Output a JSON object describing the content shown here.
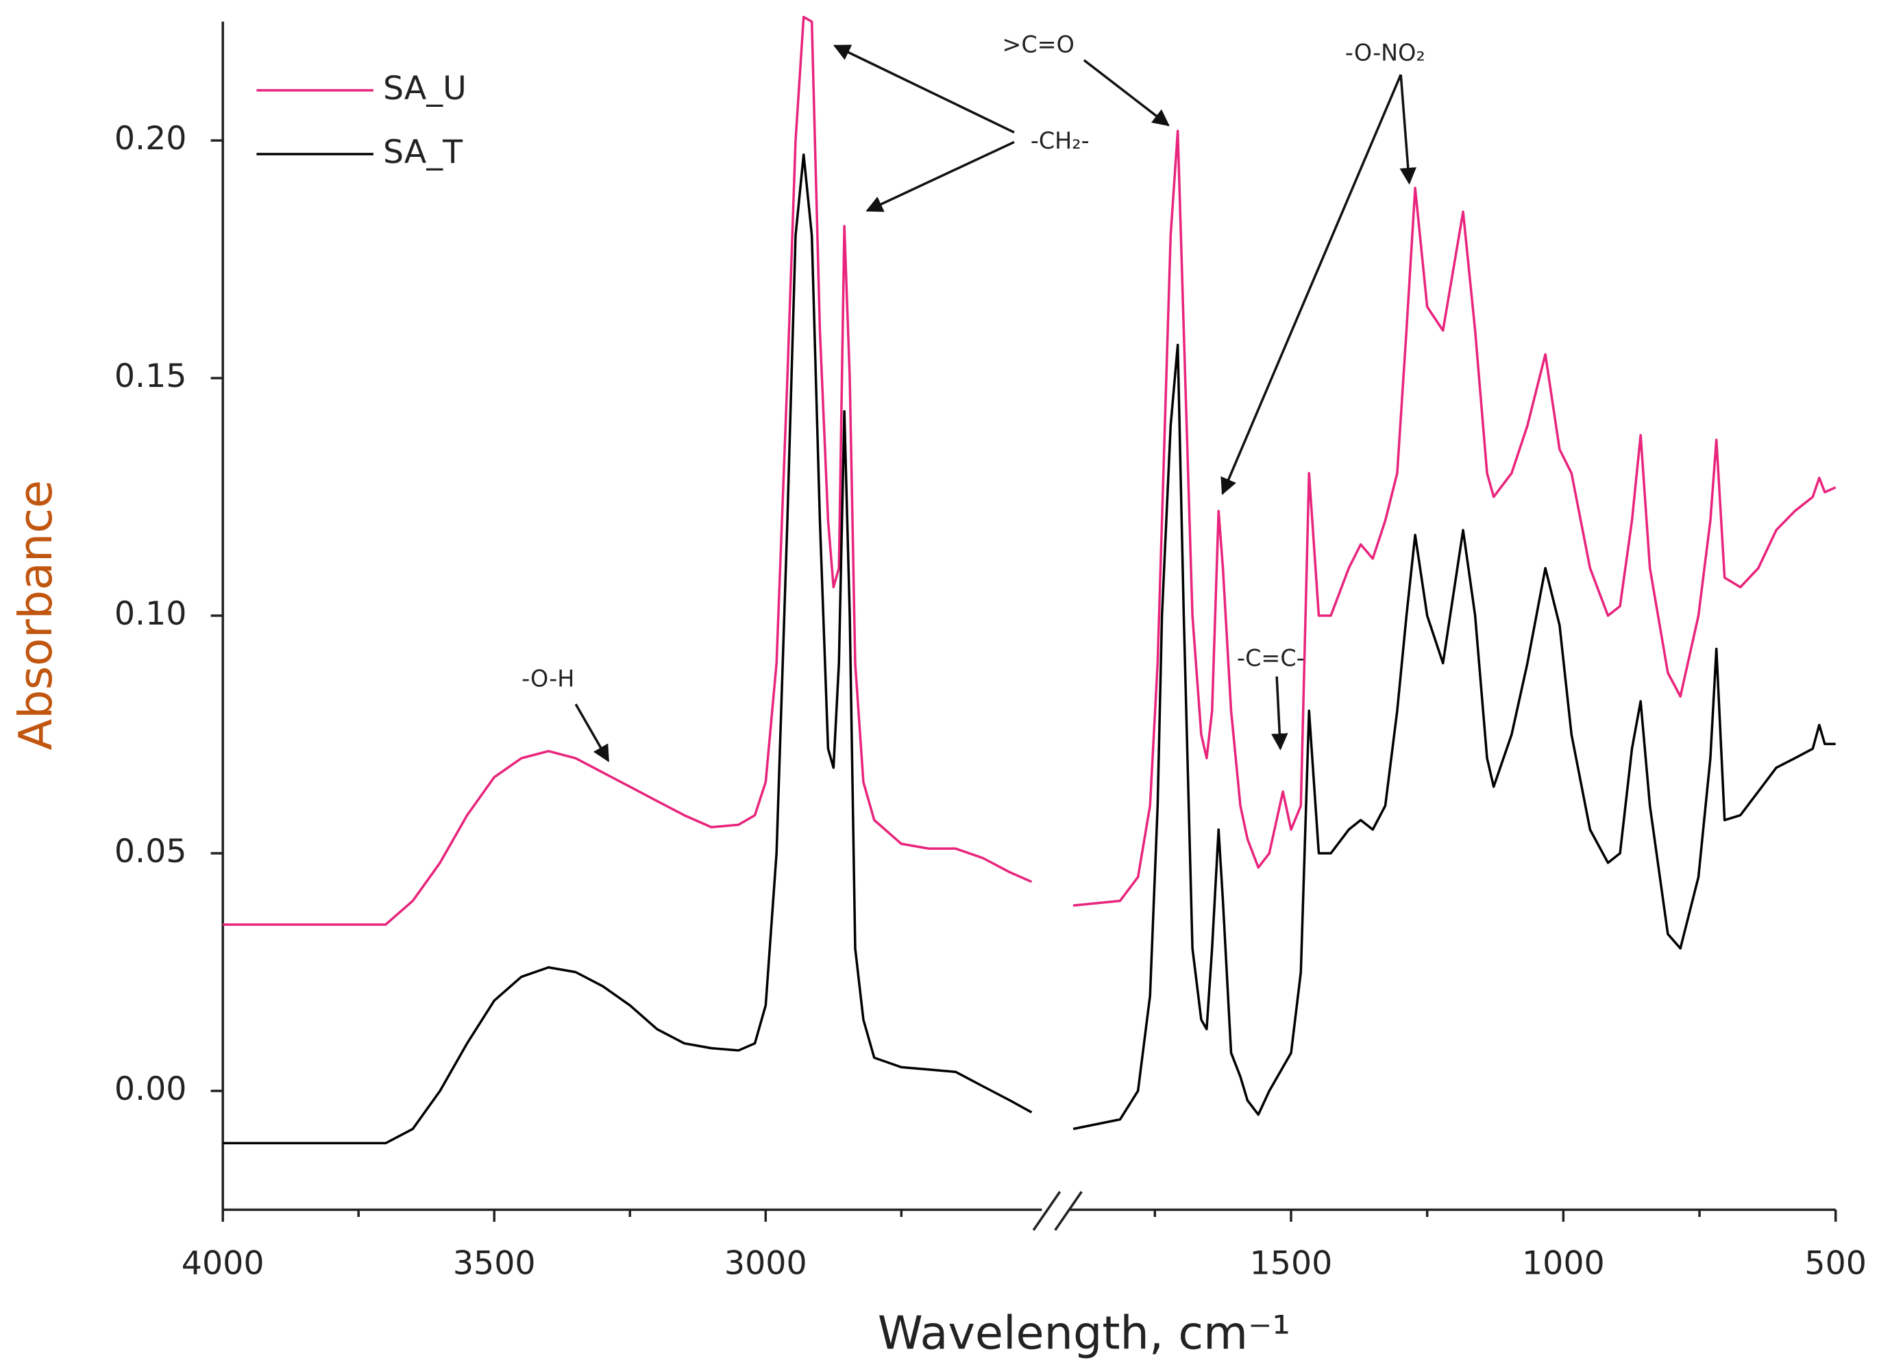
{
  "chart_data": {
    "type": "line",
    "x_label": "Wavelength, cm⁻¹",
    "y_label": "Absorbance",
    "y_label_color": "#c0560f",
    "xlim": [
      4000,
      500
    ],
    "xbreak": [
      2500,
      1900
    ],
    "xticks": [
      4000,
      3500,
      3000,
      1500,
      1000,
      500
    ],
    "xminorticks": [
      3750,
      3250,
      2750,
      1750,
      1250,
      750
    ],
    "ylim": [
      -0.025,
      0.225
    ],
    "yticks": [
      {
        "value": 0,
        "label": "0.00"
      },
      {
        "value": 0.05,
        "label": "0.05"
      },
      {
        "value": 0.1,
        "label": "0.10"
      },
      {
        "value": 0.15,
        "label": "0.15"
      },
      {
        "value": 0.2,
        "label": "0.20"
      }
    ],
    "grid": false,
    "legend": "upper left",
    "annotations": [
      "-O-H",
      "-CH₂-",
      ">C=O",
      "-O-NO₂",
      "-C=C-"
    ],
    "x": [
      4000,
      3700,
      3650,
      3600,
      3550,
      3500,
      3450,
      3400,
      3350,
      3300,
      3250,
      3200,
      3150,
      3100,
      3050,
      3020,
      3000,
      2980,
      2960,
      2945,
      2930,
      2915,
      2900,
      2885,
      2875,
      2865,
      2855,
      2845,
      2835,
      2820,
      2800,
      2750,
      2700,
      2650,
      2600,
      2550,
      2510,
      null,
      1900,
      1814,
      1781,
      1759,
      1745,
      1737,
      1721,
      1708,
      1697,
      1681,
      1665,
      1655,
      1645,
      1633,
      1625,
      1610,
      1593,
      1580,
      1560,
      1540,
      1515,
      1500,
      1482,
      1467,
      1449,
      1427,
      1394,
      1372,
      1350,
      1327,
      1305,
      1288,
      1272,
      1250,
      1221,
      1184,
      1162,
      1140,
      1128,
      1095,
      1066,
      1033,
      1007,
      985,
      951,
      918,
      896,
      874,
      858,
      841,
      808,
      785,
      752,
      730,
      719,
      704,
      675,
      642,
      609,
      575,
      542,
      530,
      520,
      500
    ],
    "series": [
      {
        "name": "SA_U",
        "color": "#e8247c",
        "values": [
          0.035,
          0.035,
          0.04,
          0.048,
          0.058,
          0.066,
          0.07,
          0.0715,
          0.07,
          0.067,
          0.064,
          0.061,
          0.058,
          0.0555,
          0.056,
          0.058,
          0.065,
          0.09,
          0.15,
          0.2,
          0.226,
          0.225,
          0.16,
          0.12,
          0.106,
          0.11,
          0.182,
          0.15,
          0.09,
          0.065,
          0.057,
          0.052,
          0.051,
          0.051,
          0.049,
          0.046,
          0.044,
          null,
          0.039,
          0.04,
          0.045,
          0.06,
          0.09,
          0.12,
          0.18,
          0.202,
          0.16,
          0.1,
          0.075,
          0.07,
          0.08,
          0.122,
          0.11,
          0.08,
          0.06,
          0.053,
          0.047,
          0.05,
          0.063,
          0.055,
          0.06,
          0.13,
          0.1,
          0.1,
          0.11,
          0.115,
          0.112,
          0.12,
          0.13,
          0.16,
          0.19,
          0.165,
          0.16,
          0.185,
          0.16,
          0.13,
          0.125,
          0.13,
          0.14,
          0.155,
          0.135,
          0.13,
          0.11,
          0.1,
          0.102,
          0.12,
          0.138,
          0.11,
          0.088,
          0.083,
          0.1,
          0.12,
          0.137,
          0.108,
          0.106,
          0.11,
          0.118,
          0.122,
          0.125,
          0.129,
          0.126,
          0.127
        ]
      },
      {
        "name": "SA_T",
        "color": "#000000",
        "values": [
          -0.011,
          -0.011,
          -0.008,
          0.0,
          0.01,
          0.019,
          0.024,
          0.026,
          0.025,
          0.022,
          0.018,
          0.013,
          0.01,
          0.009,
          0.0085,
          0.01,
          0.018,
          0.05,
          0.12,
          0.18,
          0.197,
          0.18,
          0.12,
          0.072,
          0.068,
          0.09,
          0.143,
          0.1,
          0.03,
          0.015,
          0.007,
          0.005,
          0.0045,
          0.004,
          0.001,
          -0.002,
          -0.0045,
          null,
          -0.008,
          -0.006,
          0.0,
          0.02,
          0.06,
          0.1,
          0.14,
          0.157,
          0.1,
          0.03,
          0.015,
          0.013,
          0.03,
          0.055,
          0.04,
          0.008,
          0.003,
          -0.002,
          -0.005,
          0.0,
          0.005,
          0.008,
          0.025,
          0.08,
          0.05,
          0.05,
          0.055,
          0.057,
          0.055,
          0.06,
          0.08,
          0.1,
          0.117,
          0.1,
          0.09,
          0.118,
          0.1,
          0.07,
          0.064,
          0.075,
          0.09,
          0.11,
          0.098,
          0.075,
          0.055,
          0.048,
          0.05,
          0.072,
          0.082,
          0.06,
          0.033,
          0.03,
          0.045,
          0.07,
          0.093,
          0.057,
          0.058,
          0.063,
          0.068,
          0.07,
          0.072,
          0.077,
          0.073,
          0.073
        ]
      }
    ]
  }
}
